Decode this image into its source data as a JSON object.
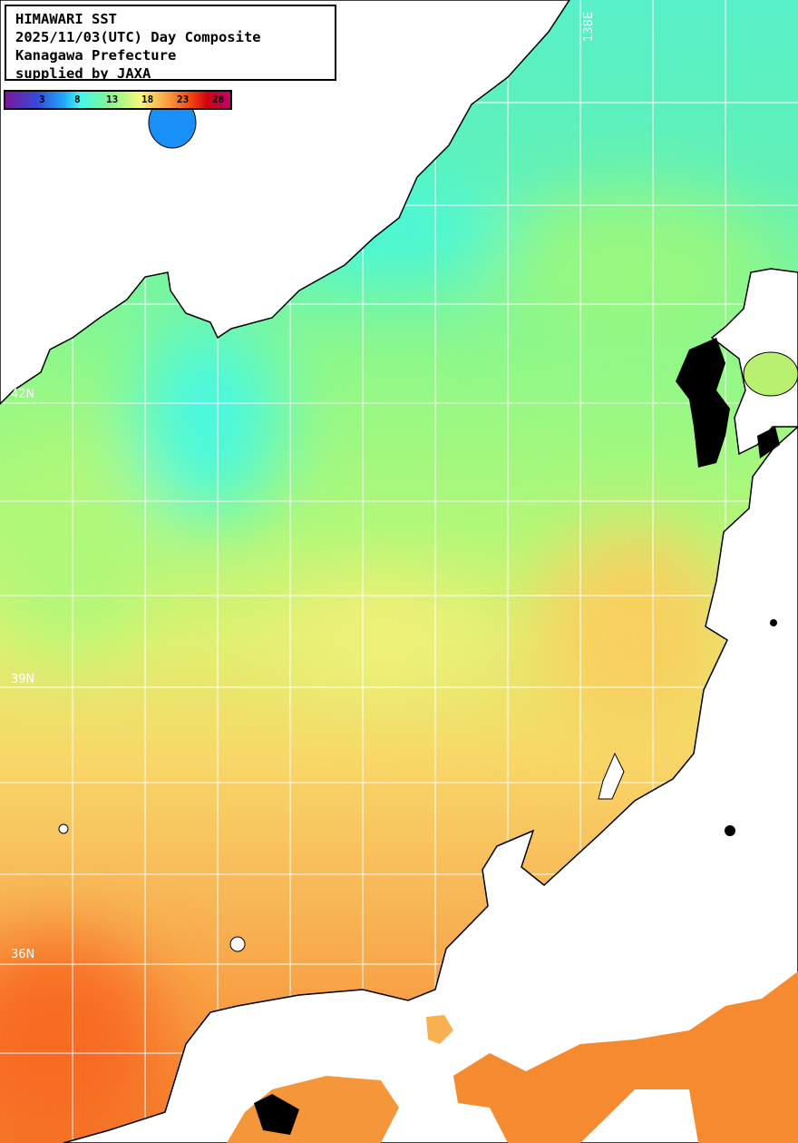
{
  "title": {
    "line1": "HIMAWARI SST",
    "line2": "2025/11/03(UTC) Day Composite",
    "line3": "Kanagawa Prefecture",
    "line4": "supplied by JAXA"
  },
  "colorbar": {
    "unit_implied": "°C",
    "ticks": [
      "3",
      "8",
      "13",
      "18",
      "23",
      "28"
    ],
    "colors": [
      "#7a189a",
      "#3848d8",
      "#20a8f8",
      "#40f8f0",
      "#80f890",
      "#f8f878",
      "#f8a040",
      "#f04010",
      "#c00070"
    ]
  },
  "grid": {
    "lat_labels": [
      "42N",
      "39N",
      "36N"
    ],
    "lon_labels": [
      "138E"
    ]
  },
  "colors": {
    "land": "#ffffff",
    "no_data": "#000000",
    "grid": "#ffffff"
  }
}
